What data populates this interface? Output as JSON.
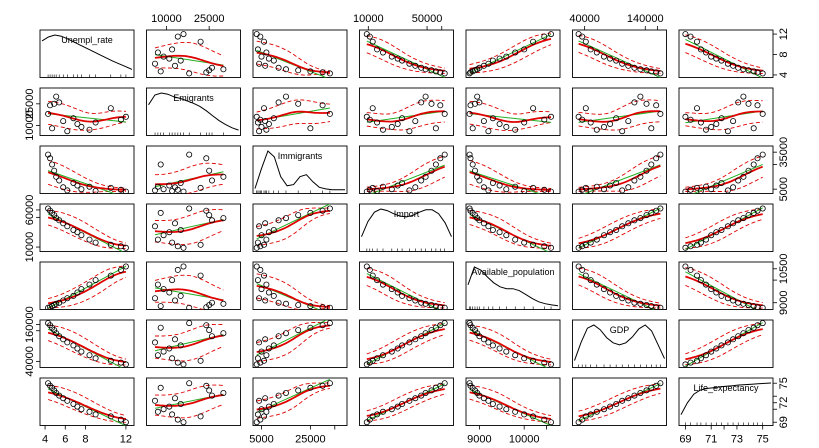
{
  "chart_data": {
    "type": "scatter",
    "kind": "scatterplot-matrix",
    "title": "",
    "variables": [
      {
        "name": "Unempl_rate",
        "lim": [
          3.5,
          12.8
        ],
        "ticks": [
          4,
          8,
          12
        ],
        "tick_labels": [
          "4",
          "8",
          "12"
        ],
        "bottom_ticks": [
          4,
          6,
          8,
          12
        ],
        "bottom_tick_labels": [
          "4",
          "6",
          "8",
          "12"
        ]
      },
      {
        "name": "Emigrants",
        "lim": [
          3000,
          36000
        ],
        "ticks": [
          10000,
          25000
        ],
        "tick_labels": [
          "10000",
          "25000"
        ]
      },
      {
        "name": "Immigrants",
        "lim": [
          1500,
          40000
        ],
        "ticks": [
          5000,
          25000,
          35000
        ],
        "tick_labels": [
          "5000",
          "25000",
          "35000"
        ],
        "bottom_tick_labels": [
          "5000",
          "25000",
          ""
        ],
        "right_tick_labels": [
          "5000",
          "",
          "35000"
        ]
      },
      {
        "name": "Import",
        "lim": [
          4000,
          68000
        ],
        "ticks": [
          10000,
          50000,
          60000
        ],
        "tick_labels": [
          "10000",
          "50000",
          "60000"
        ],
        "top_tick_labels": [
          "10000",
          "50000",
          ""
        ],
        "left_tick_labels": [
          "10000",
          "",
          "60000"
        ]
      },
      {
        "name": "Available_population",
        "lim": [
          8700,
          10800
        ],
        "ticks": [
          9000,
          10000,
          10500
        ],
        "tick_labels": [
          "9000",
          "10000",
          "10500"
        ],
        "bottom_tick_labels": [
          "9000",
          "10000",
          ""
        ],
        "right_tick_labels": [
          "9000",
          "",
          "10500"
        ]
      },
      {
        "name": "GDP",
        "lim": [
          20000,
          175000
        ],
        "ticks": [
          40000,
          140000,
          160000
        ],
        "tick_labels": [
          "40000",
          "140000",
          "160000"
        ],
        "top_tick_labels": [
          "40000",
          "140000",
          ""
        ],
        "left_tick_labels": [
          "40000",
          "",
          "160000"
        ]
      },
      {
        "name": "Life_expectancy",
        "lim": [
          68.5,
          75.8
        ],
        "ticks": [
          69,
          71,
          72,
          73,
          75
        ],
        "tick_labels": [
          "69",
          "71",
          "72",
          "73",
          "75"
        ],
        "bottom_tick_labels": [
          "69",
          "71",
          "",
          "73",
          "75"
        ],
        "right_tick_labels": [
          "69",
          "",
          "72",
          "",
          "75"
        ]
      }
    ],
    "observations": {
      "Unempl_rate": [
        12.0,
        11.5,
        10.5,
        9.0,
        8.4,
        7.6,
        7.2,
        6.8,
        6.2,
        5.8,
        5.4,
        5.1,
        4.9,
        4.7,
        4.5,
        4.3
      ],
      "Emigrants": [
        16000,
        14000,
        22000,
        12000,
        7000,
        9000,
        11000,
        15000,
        6000,
        13000,
        26000,
        30000,
        25000,
        8000,
        24000,
        18000
      ],
      "Immigrants": [
        3000,
        4500,
        6000,
        3500,
        7000,
        5000,
        8000,
        10000,
        4000,
        6500,
        12000,
        15000,
        20000,
        25000,
        30000,
        33000
      ],
      "Import": [
        9000,
        11000,
        13000,
        16000,
        20000,
        26000,
        30000,
        33000,
        38000,
        42000,
        46000,
        49000,
        53000,
        56000,
        59000,
        62000
      ],
      "Available_population": [
        10600,
        10450,
        10200,
        10000,
        9800,
        9600,
        9450,
        9300,
        9200,
        9100,
        9000,
        8950,
        8900,
        8850,
        8800,
        8780
      ],
      "GDP": [
        30000,
        36000,
        42000,
        50000,
        60000,
        72000,
        82000,
        92000,
        102000,
        112000,
        122000,
        132000,
        142000,
        150000,
        158000,
        165000
      ],
      "Life_expectancy": [
        69.0,
        69.4,
        69.9,
        70.2,
        70.6,
        71.0,
        71.4,
        71.8,
        72.3,
        72.7,
        73.1,
        73.5,
        73.9,
        74.3,
        74.6,
        75.0
      ]
    },
    "density_shapes": {
      "Unempl_rate": [
        0.85,
        0.95,
        1.0,
        0.97,
        0.9,
        0.82,
        0.74,
        0.66,
        0.58,
        0.5,
        0.42,
        0.34,
        0.27,
        0.2,
        0.13
      ],
      "Emigrants": [
        0.7,
        0.95,
        1.0,
        0.97,
        0.9,
        0.86,
        0.8,
        0.74,
        0.66,
        0.55,
        0.42,
        0.3,
        0.2,
        0.12,
        0.06
      ],
      "Immigrants": [
        0.05,
        0.55,
        1.0,
        0.85,
        0.35,
        0.12,
        0.15,
        0.35,
        0.4,
        0.22,
        0.08,
        0.04,
        0.02,
        0.02,
        0.02
      ],
      "Import": [
        0.3,
        0.68,
        0.92,
        1.0,
        0.96,
        0.88,
        0.82,
        0.8,
        0.84,
        0.92,
        0.98,
        0.98,
        0.88,
        0.65,
        0.3
      ],
      "Available_population": [
        0.55,
        1.0,
        0.92,
        0.75,
        0.6,
        0.5,
        0.45,
        0.45,
        0.4,
        0.3,
        0.2,
        0.12,
        0.07,
        0.04,
        0.02
      ],
      "GDP": [
        0.1,
        0.55,
        0.92,
        1.0,
        0.88,
        0.68,
        0.55,
        0.5,
        0.55,
        0.7,
        0.9,
        1.0,
        0.85,
        0.5,
        0.15
      ],
      "Life_expectancy": [
        0.2,
        0.5,
        0.72,
        0.82,
        0.86,
        0.88,
        0.9,
        0.92,
        0.93,
        0.95,
        0.96,
        0.97,
        0.98,
        0.99,
        1.0
      ]
    },
    "series": [
      {
        "name": "",
        "role": "points",
        "color": "#000000",
        "marker": "open-circle"
      },
      {
        "name": "",
        "role": "linear-fit",
        "color": "#22b022"
      },
      {
        "name": "",
        "role": "smooth-fit",
        "color": "#e00000"
      },
      {
        "name": "",
        "role": "spread-band",
        "color": "#e00000",
        "dash": "dashed"
      }
    ],
    "grid": false,
    "legend": "none",
    "axes": {
      "top_labels_columns": [
        1,
        3,
        5
      ],
      "bottom_labels_columns": [
        0,
        2,
        4,
        6
      ],
      "left_labels_rows": [
        1,
        3,
        5
      ],
      "right_labels_rows": [
        0,
        2,
        4,
        6
      ]
    }
  }
}
